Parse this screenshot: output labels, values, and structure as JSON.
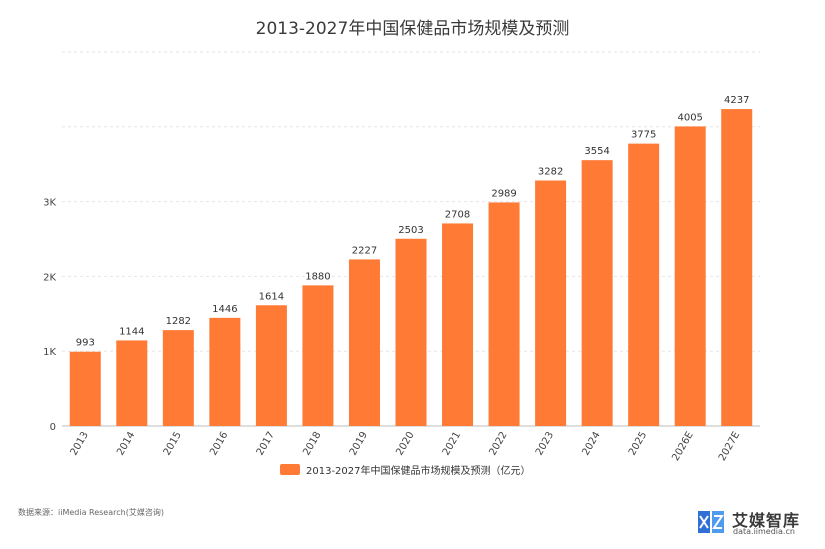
{
  "chart_data": {
    "type": "bar",
    "title": "2013-2027年中国保健品市场规模及预测",
    "categories": [
      "2013",
      "2014",
      "2015",
      "2016",
      "2017",
      "2018",
      "2019",
      "2020",
      "2021",
      "2022",
      "2023",
      "2024",
      "2025",
      "2026E",
      "2027E"
    ],
    "series": [
      {
        "name": "2013-2027年中国保健品市场规模及预测（亿元）",
        "values": [
          993,
          1144,
          1282,
          1446,
          1614,
          1880,
          2227,
          2503,
          2708,
          2989,
          3282,
          3554,
          3775,
          4005,
          4237
        ],
        "color": "#ff7a35"
      }
    ],
    "yticks": [
      {
        "value": 0,
        "label": "0"
      },
      {
        "value": 1000,
        "label": "1K"
      },
      {
        "value": 2000,
        "label": "2K"
      },
      {
        "value": 3000,
        "label": "3K"
      },
      {
        "value": 4000,
        "label": ""
      }
    ],
    "ylim": [
      0,
      5000
    ],
    "grid": true,
    "legend_position": "bottom-center",
    "xlabel": "",
    "ylabel": ""
  },
  "footer": {
    "source": "数据来源：iiMedia Research(艾媒咨询)",
    "brand_name": "艾媒智库",
    "brand_url": "data.iimedia.cn"
  }
}
